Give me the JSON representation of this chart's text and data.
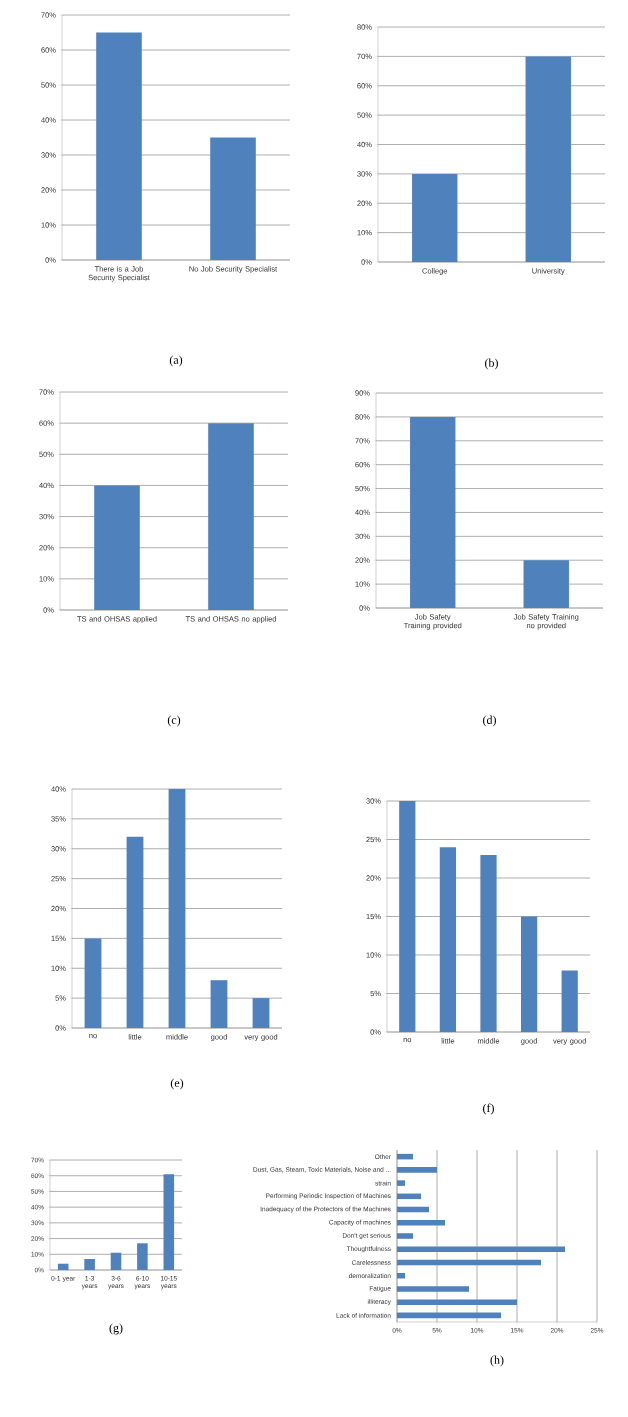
{
  "chart_data": [
    {
      "type": "bar",
      "categories": [
        "There is a Job Security Specialist",
        "No Job Security Specialist"
      ],
      "values": [
        65,
        35
      ],
      "color": "#4f81bd",
      "ylim": [
        0,
        70
      ],
      "yticks": [
        {
          "value": 0,
          "label": "0%"
        },
        {
          "value": 10,
          "label": "10%"
        },
        {
          "value": 20,
          "label": "20%"
        },
        {
          "value": 30,
          "label": "30%"
        },
        {
          "value": 40,
          "label": "40%"
        },
        {
          "value": 50,
          "label": "50%"
        },
        {
          "value": 60,
          "label": "60%"
        },
        {
          "value": 70,
          "label": "70%"
        }
      ],
      "grid": "y",
      "annotations": [
        "(a)"
      ]
    },
    {
      "type": "bar",
      "categories": [
        "College",
        "University"
      ],
      "values": [
        30,
        70
      ],
      "color": "#4f81bd",
      "ylim": [
        0,
        80
      ],
      "yticks": [
        {
          "value": 0,
          "label": "0%"
        },
        {
          "value": 10,
          "label": "10%"
        },
        {
          "value": 20,
          "label": "20%"
        },
        {
          "value": 30,
          "label": "30%"
        },
        {
          "value": 40,
          "label": "40%"
        },
        {
          "value": 50,
          "label": "50%"
        },
        {
          "value": 60,
          "label": "60%"
        },
        {
          "value": 70,
          "label": "70%"
        },
        {
          "value": 80,
          "label": "80%"
        }
      ],
      "grid": "y",
      "annotations": [
        "(b)"
      ]
    },
    {
      "type": "bar",
      "categories": [
        "TS and OHSAS applied",
        "TS and OHSAS no applied"
      ],
      "values": [
        40,
        60
      ],
      "color": "#4f81bd",
      "ylim": [
        0,
        70
      ],
      "yticks": [
        {
          "value": 0,
          "label": "0%"
        },
        {
          "value": 10,
          "label": "10%"
        },
        {
          "value": 20,
          "label": "20%"
        },
        {
          "value": 30,
          "label": "30%"
        },
        {
          "value": 40,
          "label": "40%"
        },
        {
          "value": 50,
          "label": "50%"
        },
        {
          "value": 60,
          "label": "60%"
        },
        {
          "value": 70,
          "label": "70%"
        }
      ],
      "grid": "y",
      "annotations": [
        "(c)"
      ]
    },
    {
      "type": "bar",
      "categories": [
        "Job Safety Training provided",
        "Job Safety Training no provided"
      ],
      "values": [
        80,
        20
      ],
      "color": "#4f81bd",
      "ylim": [
        0,
        90
      ],
      "yticks": [
        {
          "value": 0,
          "label": "0%"
        },
        {
          "value": 10,
          "label": "10%"
        },
        {
          "value": 20,
          "label": "20%"
        },
        {
          "value": 30,
          "label": "30%"
        },
        {
          "value": 40,
          "label": "40%"
        },
        {
          "value": 50,
          "label": "50%"
        },
        {
          "value": 60,
          "label": "60%"
        },
        {
          "value": 70,
          "label": "70%"
        },
        {
          "value": 80,
          "label": "80%"
        },
        {
          "value": 90,
          "label": "90%"
        }
      ],
      "grid": "y",
      "annotations": [
        "(d)"
      ]
    },
    {
      "type": "bar",
      "categories": [
        "no",
        "little",
        "middle",
        "good",
        "very good"
      ],
      "values": [
        15,
        32,
        40,
        8,
        5
      ],
      "color": "#4f81bd",
      "ylim": [
        0,
        40
      ],
      "yticks": [
        {
          "value": 0,
          "label": "0%"
        },
        {
          "value": 5,
          "label": "5%"
        },
        {
          "value": 10,
          "label": "10%"
        },
        {
          "value": 15,
          "label": "15%"
        },
        {
          "value": 20,
          "label": "20%"
        },
        {
          "value": 25,
          "label": "25%"
        },
        {
          "value": 30,
          "label": "30%"
        },
        {
          "value": 35,
          "label": "35%"
        },
        {
          "value": 40,
          "label": "40%"
        }
      ],
      "grid": "y",
      "annotations": [
        "(e)"
      ]
    },
    {
      "type": "bar",
      "categories": [
        "no",
        "little",
        "middle",
        "good",
        "very good"
      ],
      "values": [
        30,
        24,
        23,
        15,
        8
      ],
      "color": "#4f81bd",
      "ylim": [
        0,
        30
      ],
      "yticks": [
        {
          "value": 0,
          "label": "0%"
        },
        {
          "value": 5,
          "label": "5%"
        },
        {
          "value": 10,
          "label": "10%"
        },
        {
          "value": 15,
          "label": "15%"
        },
        {
          "value": 20,
          "label": "20%"
        },
        {
          "value": 25,
          "label": "25%"
        },
        {
          "value": 30,
          "label": "30%"
        }
      ],
      "grid": "y",
      "annotations": [
        "(f)"
      ]
    },
    {
      "type": "bar",
      "categories": [
        "0-1 year",
        "1-3 years",
        "3-6 years",
        "6-10 years",
        "10-15 years"
      ],
      "values": [
        4,
        7,
        11,
        17,
        61
      ],
      "color": "#4f81bd",
      "ylim": [
        0,
        70
      ],
      "yticks": [
        {
          "value": 0,
          "label": "0%"
        },
        {
          "value": 10,
          "label": "10%"
        },
        {
          "value": 20,
          "label": "20%"
        },
        {
          "value": 30,
          "label": "30%"
        },
        {
          "value": 40,
          "label": "40%"
        },
        {
          "value": 50,
          "label": "50%"
        },
        {
          "value": 60,
          "label": "60%"
        },
        {
          "value": 70,
          "label": "70%"
        }
      ],
      "grid": "y",
      "annotations": [
        "(g)"
      ]
    },
    {
      "type": "bar",
      "orientation": "horizontal",
      "categories": [
        "Other",
        "Dust, Gas, Steam, Toxic Materials, Noise and ...",
        "strain",
        "Performing Periodic Inspection of Machines",
        "Inadequacy of the Protectors of the Machines",
        "Capacity of machines",
        "Don't get serious",
        "Thoughtfulness",
        "Carelessness",
        "demoralization",
        "Fatigue",
        "illiteracy",
        "Lack of information"
      ],
      "values": [
        2,
        5,
        1,
        3,
        4,
        6,
        2,
        21,
        18,
        1,
        9,
        15,
        13
      ],
      "color": "#4f81bd",
      "xlim": [
        0,
        25
      ],
      "xticks": [
        {
          "value": 0,
          "label": "0%"
        },
        {
          "value": 5,
          "label": "5%"
        },
        {
          "value": 10,
          "label": "10%"
        },
        {
          "value": 15,
          "label": "15%"
        },
        {
          "value": 20,
          "label": "20%"
        },
        {
          "value": 25,
          "label": "25%"
        }
      ],
      "grid": "x",
      "annotations": [
        "(h)"
      ]
    }
  ]
}
